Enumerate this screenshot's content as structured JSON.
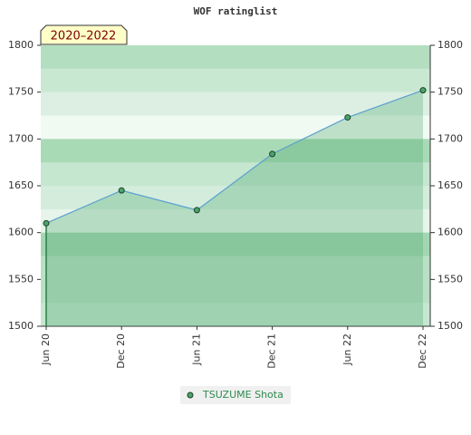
{
  "chart_data": {
    "type": "line",
    "title": "WOF ratinglist",
    "annotation": "2020–2022",
    "categories": [
      "Jun 20",
      "Dec 20",
      "Jun 21",
      "Dec 21",
      "Jun 22",
      "Dec 22"
    ],
    "series": [
      {
        "name": "TSUZUME Shota",
        "color": "#4aa56a",
        "values": [
          1610,
          1645,
          1624,
          1684,
          1723,
          1752
        ]
      }
    ],
    "ylim": [
      1500,
      1800
    ],
    "yticks": [
      1500,
      1550,
      1600,
      1650,
      1700,
      1750,
      1800
    ],
    "y2lim": [
      1500,
      1800
    ],
    "y2ticks": [
      1500,
      1550,
      1600,
      1650,
      1700,
      1750,
      1800
    ]
  }
}
